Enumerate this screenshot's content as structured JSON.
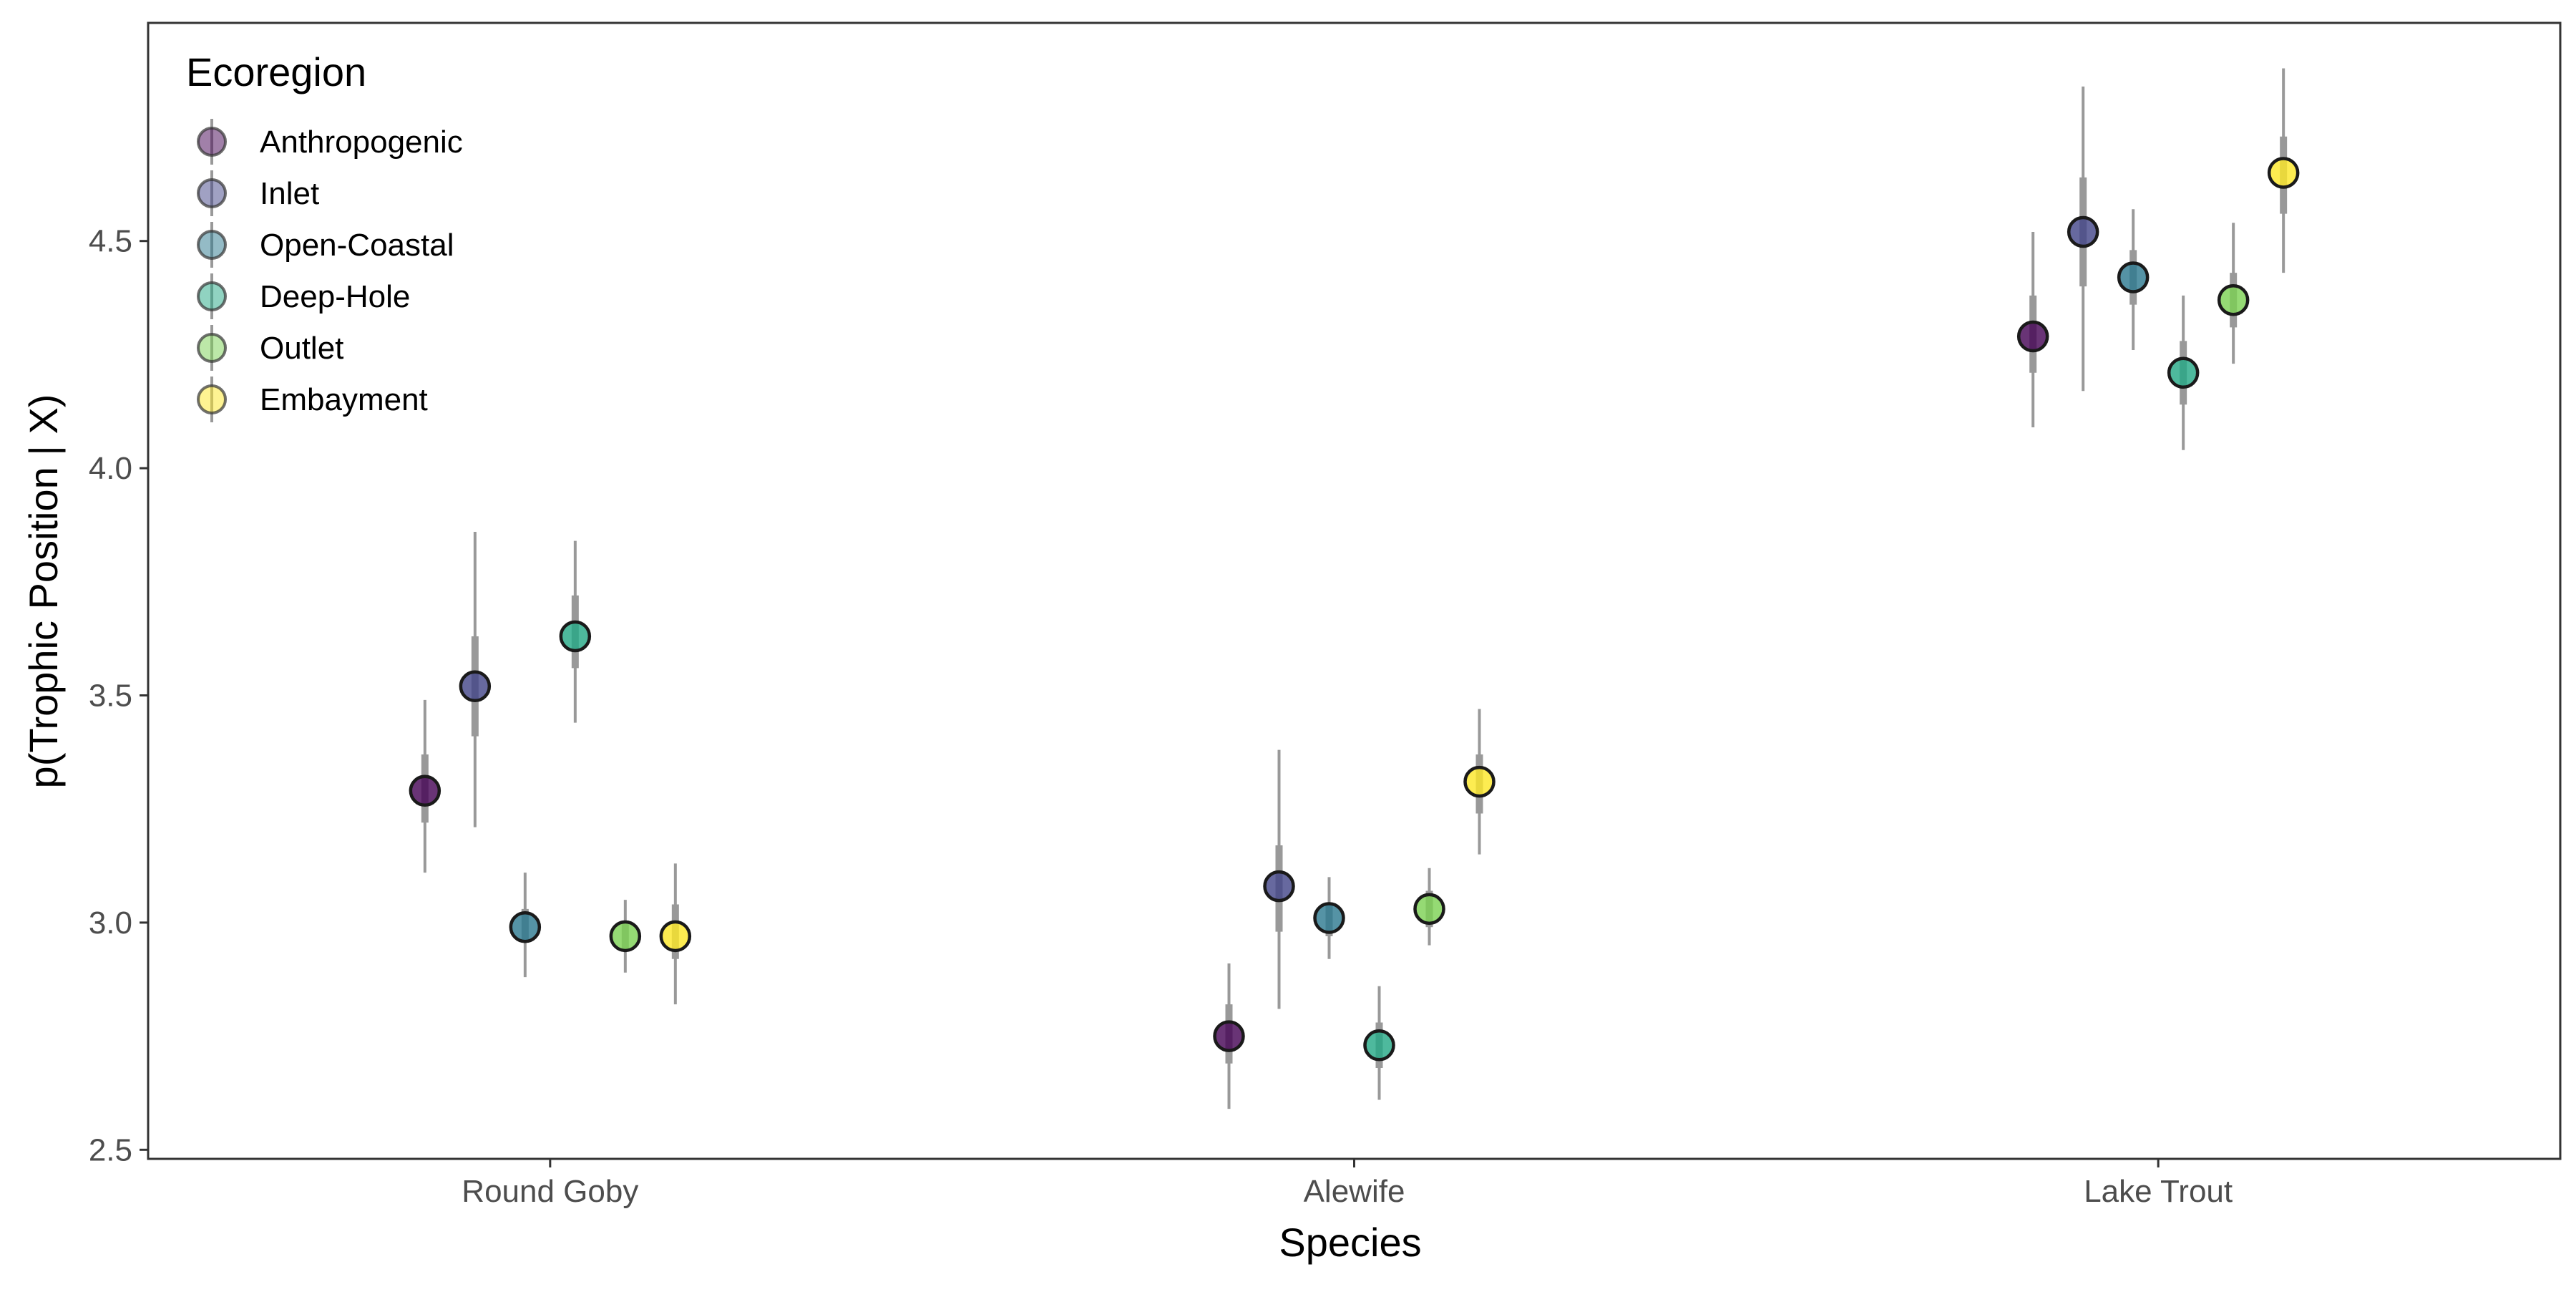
{
  "chart_data": {
    "type": "scatter",
    "title": "",
    "xlabel": "Species",
    "ylabel": "p(Trophic Position | X)",
    "categories": [
      "Round Goby",
      "Alewife",
      "Lake Trout"
    ],
    "ylim": [
      2.48,
      4.98
    ],
    "yticks": [
      2.5,
      3.0,
      3.5,
      4.0,
      4.5
    ],
    "ytick_labels": [
      "2.5",
      "3.0",
      "3.5",
      "4.0",
      "4.5"
    ],
    "grid": false,
    "legend": {
      "title": "Ecoregion",
      "position": "top-left"
    },
    "interval_color": "#999999",
    "series": [
      {
        "name": "Anthropogenic",
        "color": "#440154",
        "values": [
          3.29,
          2.75,
          4.29
        ],
        "inner": [
          [
            3.22,
            3.37
          ],
          [
            2.69,
            2.82
          ],
          [
            4.21,
            4.38
          ]
        ],
        "outer": [
          [
            3.11,
            3.49
          ],
          [
            2.59,
            2.91
          ],
          [
            4.09,
            4.52
          ]
        ]
      },
      {
        "name": "Inlet",
        "color": "#414487",
        "values": [
          3.52,
          3.08,
          4.52
        ],
        "inner": [
          [
            3.41,
            3.63
          ],
          [
            2.98,
            3.17
          ],
          [
            4.4,
            4.64
          ]
        ],
        "outer": [
          [
            3.21,
            3.86
          ],
          [
            2.81,
            3.38
          ],
          [
            4.17,
            4.84
          ]
        ]
      },
      {
        "name": "Open-Coastal",
        "color": "#2A788E",
        "values": [
          2.99,
          3.01,
          4.42
        ],
        "inner": [
          [
            2.96,
            3.03
          ],
          [
            2.97,
            3.04
          ],
          [
            4.36,
            4.48
          ]
        ],
        "outer": [
          [
            2.88,
            3.11
          ],
          [
            2.92,
            3.1
          ],
          [
            4.26,
            4.57
          ]
        ]
      },
      {
        "name": "Deep-Hole",
        "color": "#22A884",
        "values": [
          3.63,
          2.73,
          4.21
        ],
        "inner": [
          [
            3.56,
            3.72
          ],
          [
            2.68,
            2.78
          ],
          [
            4.14,
            4.28
          ]
        ],
        "outer": [
          [
            3.44,
            3.84
          ],
          [
            2.61,
            2.86
          ],
          [
            4.04,
            4.38
          ]
        ]
      },
      {
        "name": "Outlet",
        "color": "#7AD151",
        "values": [
          2.97,
          3.03,
          4.37
        ],
        "inner": [
          [
            2.94,
            3.0
          ],
          [
            2.99,
            3.07
          ],
          [
            4.31,
            4.43
          ]
        ],
        "outer": [
          [
            2.89,
            3.05
          ],
          [
            2.95,
            3.12
          ],
          [
            4.23,
            4.54
          ]
        ]
      },
      {
        "name": "Embayment",
        "color": "#FDE725",
        "values": [
          2.97,
          3.31,
          4.65
        ],
        "inner": [
          [
            2.92,
            3.04
          ],
          [
            3.24,
            3.37
          ],
          [
            4.56,
            4.73
          ]
        ],
        "outer": [
          [
            2.82,
            3.13
          ],
          [
            3.15,
            3.47
          ],
          [
            4.43,
            4.88
          ]
        ]
      }
    ]
  }
}
